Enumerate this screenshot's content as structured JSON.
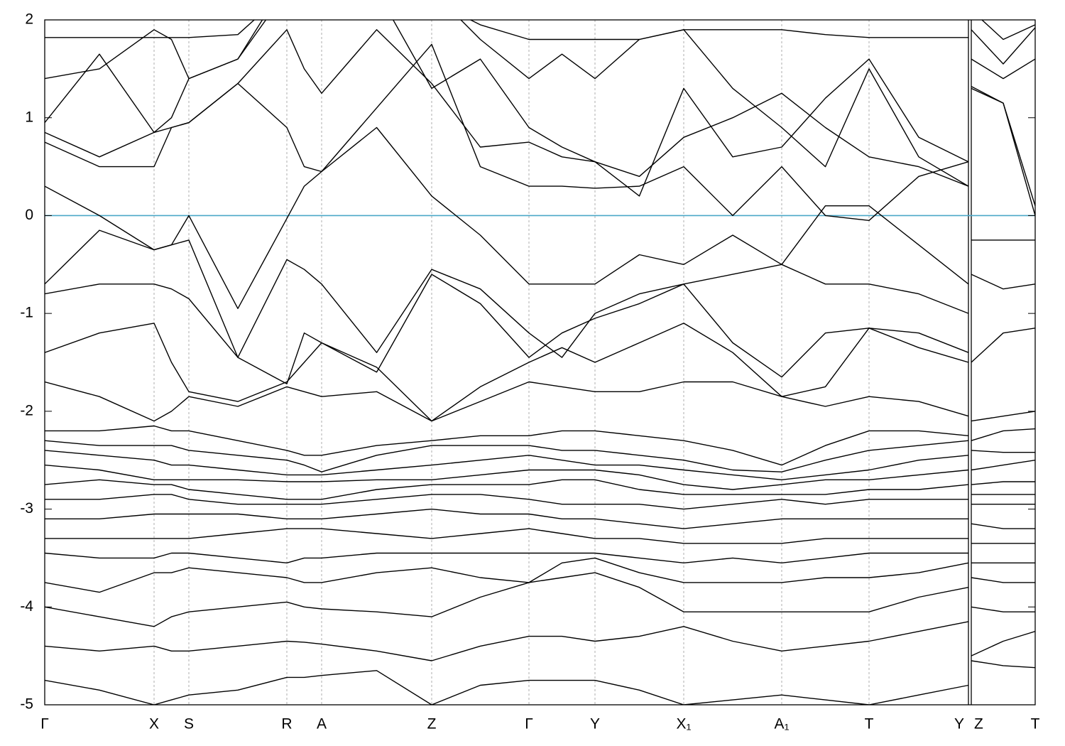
{
  "chart_data": {
    "type": "line",
    "x": [
      0,
      0.154,
      0.308,
      0.357,
      0.406,
      0.544,
      0.682,
      0.731,
      0.78,
      0.935,
      1.09,
      1.227,
      1.364,
      1.457,
      1.55,
      1.675,
      1.8,
      1.938,
      2.076,
      2.199,
      2.322,
      2.462,
      2.602,
      2.606,
      2.61,
      2.7,
      2.79
    ],
    "xlim": [
      0,
      2.79
    ],
    "xticks": [
      {
        "value": 0,
        "label": "Γ"
      },
      {
        "value": 0.308,
        "label": "X"
      },
      {
        "value": 0.406,
        "label": "S"
      },
      {
        "value": 0.682,
        "label": "R"
      },
      {
        "value": 0.78,
        "label": "A"
      },
      {
        "value": 1.09,
        "label": "Z"
      },
      {
        "value": 1.364,
        "label": "Γ"
      },
      {
        "value": 1.55,
        "label": "Y"
      },
      {
        "value": 1.8,
        "label": "X₁"
      },
      {
        "value": 2.076,
        "label": "A₁"
      },
      {
        "value": 2.322,
        "label": "T"
      },
      {
        "value": 2.602,
        "label": "Y"
      },
      {
        "value": 2.61,
        "label": "Z"
      },
      {
        "value": 2.79,
        "label": "T"
      }
    ],
    "ylim": [
      -5,
      2
    ],
    "yticks": [
      -5,
      -4,
      -3,
      -2,
      -1,
      0,
      1,
      2
    ],
    "grid": true,
    "fermi_level": 0,
    "fermi_color": "#4aa8c8",
    "series": [
      {
        "color": "#000000",
        "values": [
          -4.75,
          -4.85,
          -5.0,
          -4.95,
          -4.9,
          -4.85,
          -4.72,
          -4.72,
          -4.7,
          -4.65,
          -5.0,
          -4.8,
          -4.75,
          -4.75,
          -4.75,
          -4.85,
          -5.0,
          -4.95,
          -4.9,
          -4.95,
          -5.0,
          -4.9,
          -4.8,
          null,
          -4.55,
          -4.6,
          -4.62
        ]
      },
      {
        "color": "#000000",
        "values": [
          -4.4,
          -4.45,
          -4.4,
          -4.45,
          -4.45,
          -4.4,
          -4.35,
          -4.36,
          -4.38,
          -4.45,
          -4.55,
          -4.4,
          -4.3,
          -4.3,
          -4.35,
          -4.3,
          -4.2,
          -4.35,
          -4.45,
          -4.4,
          -4.35,
          -4.25,
          -4.15,
          null,
          -4.5,
          -4.35,
          -4.25
        ]
      },
      {
        "color": "#000000",
        "values": [
          -4.0,
          -4.1,
          -4.2,
          -4.1,
          -4.05,
          -4.0,
          -3.95,
          -4.0,
          -4.02,
          -4.05,
          -4.1,
          -3.9,
          -3.75,
          -3.7,
          -3.65,
          -3.8,
          -4.05,
          -4.05,
          -4.05,
          -4.05,
          -4.05,
          -3.9,
          -3.8,
          null,
          -4.0,
          -4.05,
          -4.05
        ]
      },
      {
        "color": "#000000",
        "values": [
          -3.75,
          -3.85,
          -3.65,
          -3.65,
          -3.6,
          -3.65,
          -3.7,
          -3.75,
          -3.75,
          -3.65,
          -3.6,
          -3.7,
          -3.75,
          -3.55,
          -3.5,
          -3.65,
          -3.75,
          -3.75,
          -3.75,
          -3.7,
          -3.7,
          -3.65,
          -3.55,
          null,
          -3.7,
          -3.75,
          -3.75
        ]
      },
      {
        "color": "#000000",
        "values": [
          -3.45,
          -3.5,
          -3.5,
          -3.45,
          -3.45,
          -3.5,
          -3.55,
          -3.5,
          -3.5,
          -3.45,
          -3.45,
          -3.45,
          -3.45,
          -3.45,
          -3.45,
          -3.5,
          -3.55,
          -3.5,
          -3.55,
          -3.5,
          -3.45,
          -3.45,
          -3.45,
          null,
          -3.55,
          -3.55,
          -3.55
        ]
      },
      {
        "color": "#000000",
        "values": [
          -3.3,
          -3.3,
          -3.3,
          -3.3,
          -3.3,
          -3.25,
          -3.2,
          -3.2,
          -3.2,
          -3.25,
          -3.3,
          -3.25,
          -3.2,
          -3.25,
          -3.3,
          -3.3,
          -3.35,
          -3.35,
          -3.35,
          -3.3,
          -3.3,
          -3.3,
          -3.3,
          null,
          -3.35,
          -3.35,
          -3.35
        ]
      },
      {
        "color": "#000000",
        "values": [
          -3.1,
          -3.1,
          -3.05,
          -3.05,
          -3.05,
          -3.05,
          -3.1,
          -3.1,
          -3.1,
          -3.05,
          -3.0,
          -3.05,
          -3.05,
          -3.1,
          -3.1,
          -3.15,
          -3.2,
          -3.15,
          -3.1,
          -3.1,
          -3.1,
          -3.1,
          -3.1,
          null,
          -3.15,
          -3.2,
          -3.2
        ]
      },
      {
        "color": "#000000",
        "values": [
          -2.9,
          -2.9,
          -2.85,
          -2.85,
          -2.9,
          -2.95,
          -2.95,
          -2.95,
          -2.95,
          -2.9,
          -2.85,
          -2.85,
          -2.9,
          -2.95,
          -2.95,
          -2.95,
          -3.0,
          -2.95,
          -2.9,
          -2.95,
          -2.9,
          -2.9,
          -2.9,
          null,
          -2.95,
          -2.95,
          -2.95
        ]
      },
      {
        "color": "#000000",
        "values": [
          -2.75,
          -2.7,
          -2.75,
          -2.75,
          -2.8,
          -2.85,
          -2.9,
          -2.9,
          -2.9,
          -2.8,
          -2.75,
          -2.75,
          -2.75,
          -2.7,
          -2.7,
          -2.8,
          -2.85,
          -2.85,
          -2.85,
          -2.85,
          -2.8,
          -2.8,
          -2.75,
          null,
          -2.85,
          -2.85,
          -2.85
        ]
      },
      {
        "color": "#000000",
        "values": [
          -2.55,
          -2.6,
          -2.7,
          -2.7,
          -2.7,
          -2.7,
          -2.72,
          -2.72,
          -2.72,
          -2.7,
          -2.7,
          -2.65,
          -2.6,
          -2.6,
          -2.6,
          -2.65,
          -2.75,
          -2.8,
          -2.75,
          -2.7,
          -2.7,
          -2.65,
          -2.6,
          null,
          -2.75,
          -2.72,
          -2.72
        ]
      },
      {
        "color": "#000000",
        "values": [
          -2.4,
          -2.45,
          -2.5,
          -2.55,
          -2.55,
          -2.6,
          -2.65,
          -2.65,
          -2.65,
          -2.6,
          -2.55,
          -2.5,
          -2.45,
          -2.5,
          -2.55,
          -2.55,
          -2.6,
          -2.65,
          -2.7,
          -2.65,
          -2.6,
          -2.5,
          -2.45,
          null,
          -2.6,
          -2.55,
          -2.5
        ]
      },
      {
        "color": "#000000",
        "values": [
          -2.3,
          -2.35,
          -2.35,
          -2.35,
          -2.4,
          -2.45,
          -2.5,
          -2.55,
          -2.62,
          -2.45,
          -2.35,
          -2.35,
          -2.35,
          -2.4,
          -2.4,
          -2.45,
          -2.5,
          -2.6,
          -2.62,
          -2.5,
          -2.4,
          -2.35,
          -2.3,
          null,
          -2.4,
          -2.42,
          -2.42
        ]
      },
      {
        "color": "#000000",
        "values": [
          -2.2,
          -2.2,
          -2.15,
          -2.2,
          -2.2,
          -2.3,
          -2.4,
          -2.45,
          -2.45,
          -2.35,
          -2.3,
          -2.25,
          -2.25,
          -2.2,
          -2.2,
          -2.25,
          -2.3,
          -2.4,
          -2.55,
          -2.35,
          -2.2,
          -2.2,
          -2.25,
          null,
          -2.3,
          -2.2,
          -2.18
        ]
      },
      {
        "color": "#000000",
        "values": [
          -1.7,
          -1.85,
          -2.1,
          -2.0,
          -1.85,
          -1.95,
          -1.75,
          -1.8,
          -1.85,
          -1.8,
          -2.1,
          -1.9,
          -1.7,
          -1.75,
          -1.8,
          -1.8,
          -1.7,
          -1.7,
          -1.85,
          -1.95,
          -1.85,
          -1.9,
          -2.05,
          null,
          -2.1,
          -2.05,
          -2.0
        ]
      },
      {
        "color": "#000000",
        "values": [
          -1.4,
          -1.2,
          -1.1,
          -1.5,
          -1.8,
          -1.9,
          -1.7,
          -1.5,
          -1.3,
          -1.55,
          -2.1,
          -1.75,
          -1.5,
          -1.35,
          -1.5,
          -1.3,
          -1.1,
          -1.4,
          -1.85,
          -1.75,
          -1.15,
          -1.35,
          -1.5,
          null,
          -1.5,
          -1.2,
          -1.15
        ]
      },
      {
        "color": "#000000",
        "values": [
          -0.8,
          -0.7,
          -0.7,
          -0.75,
          -0.85,
          -1.45,
          -1.72,
          -1.2,
          -1.3,
          -1.6,
          -0.6,
          -0.9,
          -1.45,
          -1.2,
          -1.05,
          -0.9,
          -0.7,
          -1.3,
          -1.65,
          -1.2,
          -1.15,
          -1.2,
          -1.4,
          null,
          -0.6,
          -0.75,
          -0.7
        ]
      },
      {
        "color": "#000000",
        "values": [
          -0.7,
          -0.15,
          -0.35,
          -0.3,
          -0.25,
          -1.45,
          -0.45,
          -0.55,
          -0.7,
          -1.4,
          -0.55,
          -0.75,
          -1.2,
          -1.45,
          -1.0,
          -0.8,
          -0.7,
          -0.6,
          -0.5,
          -0.7,
          -0.7,
          -0.8,
          -1.0,
          null,
          -0.25,
          -0.25,
          -0.25
        ]
      },
      {
        "color": "#000000",
        "values": [
          0.3,
          0.0,
          -0.35,
          -0.3,
          0.0,
          -0.95,
          -0.03,
          0.3,
          0.45,
          0.9,
          0.2,
          -0.2,
          -0.7,
          -0.7,
          -0.7,
          -0.4,
          -0.5,
          -0.2,
          -0.5,
          0.1,
          0.1,
          -0.3,
          -0.7,
          null,
          1.3,
          1.15,
          0.0
        ]
      },
      {
        "color": "#000000",
        "values": [
          0.75,
          0.5,
          0.5,
          0.9,
          0.95,
          1.35,
          0.9,
          0.5,
          0.45,
          1.1,
          1.75,
          0.5,
          0.3,
          0.3,
          0.28,
          0.3,
          0.5,
          0.0,
          0.5,
          0.0,
          -0.05,
          0.4,
          0.55,
          null,
          1.32,
          1.15,
          0.1
        ]
      },
      {
        "color": "#000000",
        "values": [
          0.85,
          0.6,
          0.85,
          0.9,
          0.95,
          1.35,
          1.9,
          1.5,
          1.25,
          1.9,
          1.35,
          0.7,
          0.75,
          0.6,
          0.55,
          0.4,
          0.8,
          1.0,
          1.25,
          0.9,
          0.6,
          0.5,
          0.3,
          null,
          1.6,
          1.4,
          1.6
        ]
      },
      {
        "color": "#000000",
        "values": [
          0.95,
          1.65,
          0.85,
          1.0,
          1.4,
          1.6,
          2.3,
          2.2,
          2.1,
          2.3,
          1.3,
          1.6,
          0.9,
          0.7,
          0.55,
          0.2,
          1.3,
          0.6,
          0.7,
          1.2,
          1.6,
          0.8,
          0.55,
          null,
          1.9,
          1.55,
          1.92
        ]
      },
      {
        "color": "#000000",
        "values": [
          1.4,
          1.5,
          1.9,
          1.8,
          1.4,
          1.6,
          2.4,
          2.4,
          2.4,
          2.4,
          2.3,
          1.8,
          1.4,
          1.65,
          1.4,
          1.8,
          1.9,
          1.3,
          0.9,
          0.5,
          1.5,
          0.6,
          0.3,
          null,
          2.1,
          1.8,
          1.95
        ]
      },
      {
        "color": "#000000",
        "values": [
          1.82,
          1.82,
          1.82,
          1.82,
          1.82,
          1.85,
          2.3,
          2.3,
          2.3,
          2.3,
          2.2,
          1.95,
          1.8,
          1.8,
          1.8,
          1.8,
          1.9,
          1.9,
          1.9,
          1.85,
          1.82,
          1.82,
          1.82,
          null,
          2.2,
          2.2,
          2.2
        ]
      }
    ]
  }
}
